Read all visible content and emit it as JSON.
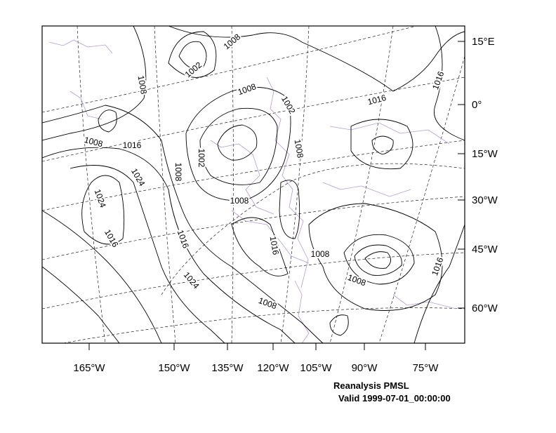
{
  "x_axis_labels": [
    "165°W",
    "150°W",
    "135°W",
    "120°W",
    "105°W",
    "90°W",
    "75°W"
  ],
  "y_axis_labels": [
    "15°E",
    "0°",
    "15°W",
    "30°W",
    "45°W",
    "60°W"
  ],
  "contour_labels": [
    "1002",
    "1008",
    "1008",
    "1008",
    "1002",
    "1016",
    "1016",
    "1008",
    "1016",
    "1002",
    "1008",
    "1024",
    "1008",
    "1024",
    "1008",
    "1016",
    "1016",
    "1016",
    "1008",
    "1008",
    "1016",
    "1024",
    "1008"
  ],
  "caption": {
    "title": "Reanalysis PMSL",
    "valid": "Valid 1999-07-01_00:00:00"
  }
}
